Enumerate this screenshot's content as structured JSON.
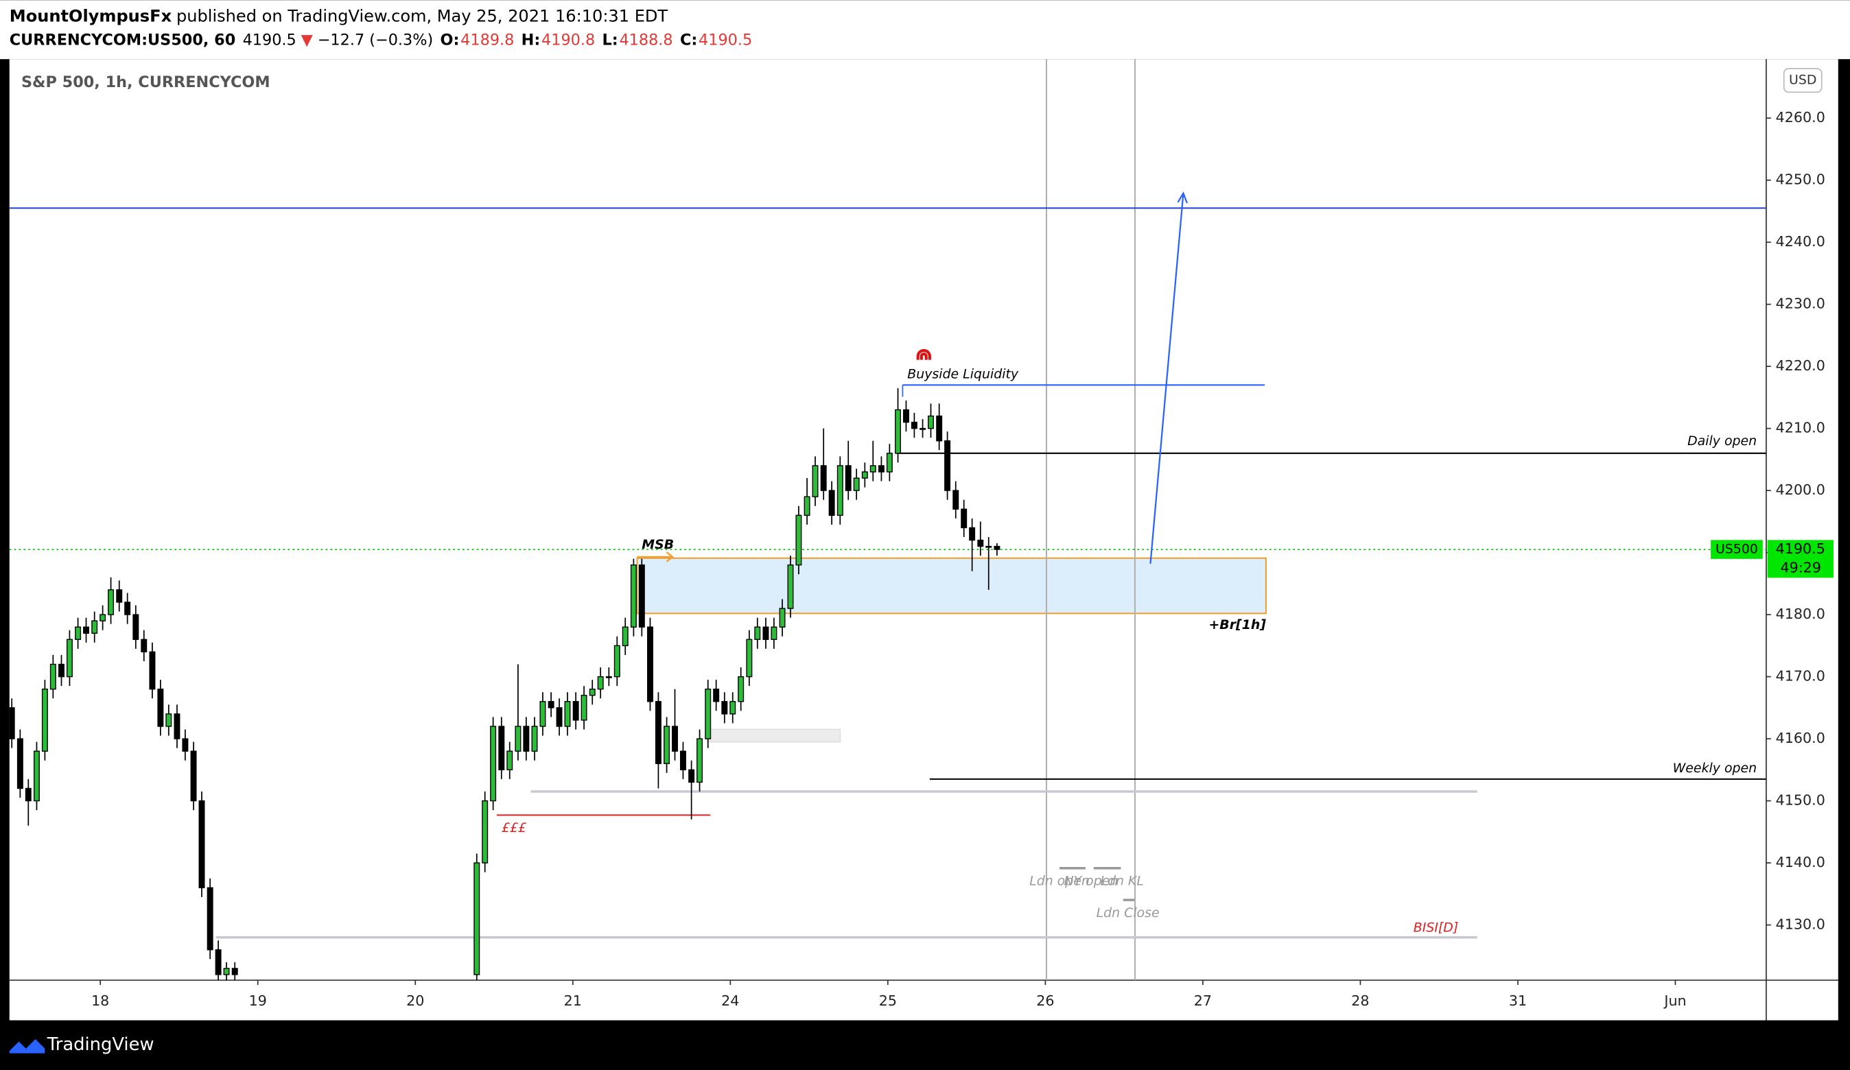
{
  "header": {
    "author": "MountOlympusFx",
    "published": "published on TradingView.com, May 25, 2021 16:10:31 EDT",
    "symbol": "CURRENCYCOM:US500, 60",
    "last": "4190.5",
    "arrow": "▼",
    "change": "−12.7 (−0.3%)",
    "ohlc": [
      {
        "key": "O:",
        "value": "4189.8"
      },
      {
        "key": "H:",
        "value": "4190.8"
      },
      {
        "key": "L:",
        "value": "4188.8"
      },
      {
        "key": "C:",
        "value": "4190.5"
      }
    ]
  },
  "footer": {
    "brand": "TradingView"
  },
  "chart_data": {
    "type": "candlestick",
    "title": "S&P 500, 1h, CURRENCYCOM",
    "currency": "USD",
    "xlim": [
      -0.577,
      10.577
    ],
    "ylim": [
      4121.1,
      4269.5
    ],
    "grid": false,
    "xticks": [
      {
        "value": 0,
        "label": "18"
      },
      {
        "value": 1,
        "label": "19"
      },
      {
        "value": 2,
        "label": "20"
      },
      {
        "value": 3,
        "label": "21"
      },
      {
        "value": 4,
        "label": "24"
      },
      {
        "value": 5,
        "label": "25"
      },
      {
        "value": 6,
        "label": "26"
      },
      {
        "value": 7,
        "label": "27"
      },
      {
        "value": 8,
        "label": "28"
      },
      {
        "value": 9,
        "label": "31"
      },
      {
        "value": 10,
        "label": "Jun"
      }
    ],
    "yticks": [
      {
        "value": 4130,
        "label": "4130.0"
      },
      {
        "value": 4140,
        "label": "4140.0"
      },
      {
        "value": 4150,
        "label": "4150.0"
      },
      {
        "value": 4160,
        "label": "4160.0"
      },
      {
        "value": 4170,
        "label": "4170.0"
      },
      {
        "value": 4180,
        "label": "4180.0"
      },
      {
        "value": 4190,
        "label": "4190.0"
      },
      {
        "value": 4200,
        "label": "4200.0"
      },
      {
        "value": 4210,
        "label": "4210.0"
      },
      {
        "value": 4220,
        "label": "4220.0"
      },
      {
        "value": 4230,
        "label": "4230.0"
      },
      {
        "value": 4240,
        "label": "4240.0"
      },
      {
        "value": 4250,
        "label": "4250.0"
      },
      {
        "value": 4260,
        "label": "4260.0"
      }
    ],
    "up_color": "#2dbb3a",
    "down_color": "#000000",
    "candles": [
      [
        -0.562,
        4165,
        4166.5,
        4158.5,
        4160
      ],
      [
        -0.509,
        4160,
        4161.5,
        4150.5,
        4152
      ],
      [
        -0.457,
        4152,
        4153.5,
        4146,
        4150
      ],
      [
        -0.404,
        4150,
        4159.5,
        4148.5,
        4158
      ],
      [
        -0.352,
        4158,
        4169.5,
        4156.5,
        4168
      ],
      [
        -0.3,
        4168,
        4173.5,
        4166.5,
        4172
      ],
      [
        -0.247,
        4172,
        4173.5,
        4168.5,
        4170
      ],
      [
        -0.195,
        4170,
        4177.5,
        4168.5,
        4176
      ],
      [
        -0.142,
        4176,
        4179.5,
        4174.5,
        4178
      ],
      [
        -0.09,
        4178,
        4179.5,
        4175.5,
        4177
      ],
      [
        -0.037,
        4177,
        4180.5,
        4175.5,
        4179
      ],
      [
        0.015,
        4179,
        4181.5,
        4177.5,
        4180
      ],
      [
        0.067,
        4180,
        4186,
        4178.5,
        4184
      ],
      [
        0.12,
        4184,
        4185.5,
        4180.5,
        4182
      ],
      [
        0.172,
        4182,
        4183.5,
        4178.5,
        4180
      ],
      [
        0.225,
        4180,
        4181.5,
        4174.5,
        4176
      ],
      [
        0.277,
        4176,
        4177.5,
        4172.5,
        4174
      ],
      [
        0.33,
        4174,
        4175.5,
        4166.5,
        4168
      ],
      [
        0.382,
        4168,
        4169.5,
        4160.5,
        4162
      ],
      [
        0.434,
        4162,
        4165.5,
        4160.5,
        4164
      ],
      [
        0.487,
        4164,
        4165.5,
        4158.5,
        4160
      ],
      [
        0.539,
        4160,
        4161.5,
        4156.5,
        4158
      ],
      [
        0.592,
        4158,
        4159.5,
        4148.5,
        4150
      ],
      [
        0.644,
        4150,
        4151.5,
        4134.5,
        4136
      ],
      [
        0.697,
        4136,
        4137.5,
        4124.5,
        4126
      ],
      [
        0.749,
        4126,
        4127.5,
        4120.5,
        4122
      ],
      [
        0.801,
        4122,
        4124,
        4120,
        4123
      ],
      [
        0.854,
        4123,
        4124,
        4120,
        4122
      ],
      [
        2.39,
        4122,
        4141.5,
        4120.5,
        4140
      ],
      [
        2.442,
        4140,
        4151.5,
        4138.5,
        4150
      ],
      [
        2.494,
        4150,
        4163.5,
        4148.5,
        4162
      ],
      [
        2.547,
        4162,
        4163.5,
        4153.5,
        4155
      ],
      [
        2.599,
        4155,
        4159.5,
        4153.5,
        4158
      ],
      [
        2.652,
        4158,
        4172,
        4156.5,
        4162
      ],
      [
        2.704,
        4162,
        4163.5,
        4156.5,
        4158
      ],
      [
        2.757,
        4158,
        4163.5,
        4156.5,
        4162
      ],
      [
        2.809,
        4162,
        4167.5,
        4160.5,
        4166
      ],
      [
        2.862,
        4166,
        4167.5,
        4163.5,
        4165
      ],
      [
        2.914,
        4165,
        4166.5,
        4160.5,
        4162
      ],
      [
        2.966,
        4162,
        4167.5,
        4160.5,
        4166
      ],
      [
        3.019,
        4166,
        4167.5,
        4161.5,
        4163
      ],
      [
        3.071,
        4163,
        4168.5,
        4161.5,
        4167
      ],
      [
        3.124,
        4167,
        4169.5,
        4165.5,
        4168
      ],
      [
        3.176,
        4168,
        4171.5,
        4166.5,
        4170
      ],
      [
        3.229,
        4170,
        4171.5,
        4168.5,
        4170
      ],
      [
        3.281,
        4170,
        4176.5,
        4168.5,
        4175
      ],
      [
        3.333,
        4175,
        4179.5,
        4173.5,
        4178
      ],
      [
        3.386,
        4178,
        4189,
        4176.5,
        4188
      ],
      [
        3.438,
        4188,
        4189,
        4176.5,
        4178
      ],
      [
        3.491,
        4178,
        4179.5,
        4164.5,
        4166
      ],
      [
        3.543,
        4166,
        4167.5,
        4152,
        4156
      ],
      [
        3.596,
        4156,
        4163.5,
        4154.5,
        4162
      ],
      [
        3.648,
        4162,
        4168,
        4156.5,
        4158
      ],
      [
        3.7,
        4158,
        4159.5,
        4153.5,
        4155
      ],
      [
        3.753,
        4155,
        4156.5,
        4147,
        4153
      ],
      [
        3.805,
        4153,
        4161.5,
        4151.5,
        4160
      ],
      [
        3.858,
        4160,
        4169.5,
        4158.5,
        4168
      ],
      [
        3.91,
        4168,
        4169.5,
        4164.5,
        4166
      ],
      [
        3.963,
        4166,
        4167.5,
        4162.5,
        4164
      ],
      [
        4.015,
        4164,
        4167.5,
        4162.5,
        4166
      ],
      [
        4.067,
        4166,
        4171.5,
        4164.5,
        4170
      ],
      [
        4.12,
        4170,
        4177.5,
        4168.5,
        4176
      ],
      [
        4.172,
        4176,
        4179.5,
        4174.5,
        4178
      ],
      [
        4.225,
        4178,
        4179.5,
        4174.5,
        4176
      ],
      [
        4.277,
        4176,
        4179.5,
        4174.5,
        4178
      ],
      [
        4.33,
        4178,
        4182.5,
        4176.5,
        4181
      ],
      [
        4.382,
        4181,
        4189.5,
        4179.5,
        4188
      ],
      [
        4.434,
        4188,
        4197.5,
        4186.5,
        4196
      ],
      [
        4.487,
        4196,
        4202,
        4194.5,
        4199
      ],
      [
        4.539,
        4199,
        4205.5,
        4197.5,
        4204
      ],
      [
        4.592,
        4204,
        4210,
        4198.5,
        4200
      ],
      [
        4.644,
        4200,
        4201.5,
        4194.5,
        4196
      ],
      [
        4.697,
        4196,
        4205.5,
        4194.5,
        4204
      ],
      [
        4.749,
        4204,
        4208,
        4198.5,
        4200
      ],
      [
        4.801,
        4200,
        4203.5,
        4198.5,
        4202
      ],
      [
        4.854,
        4202,
        4204.5,
        4200.5,
        4203
      ],
      [
        4.906,
        4203,
        4208,
        4201.5,
        4204
      ],
      [
        4.959,
        4204,
        4205.5,
        4201.5,
        4203
      ],
      [
        5.011,
        4203,
        4207.5,
        4201.5,
        4206
      ],
      [
        5.064,
        4206,
        4216.5,
        4204.5,
        4213
      ],
      [
        5.116,
        4213,
        4214.5,
        4209.5,
        4211
      ],
      [
        5.168,
        4211,
        4212.5,
        4208.5,
        4210
      ],
      [
        5.221,
        4210,
        4211.5,
        4208.5,
        4210
      ],
      [
        5.273,
        4210,
        4214,
        4208.5,
        4212
      ],
      [
        5.326,
        4212,
        4214,
        4206.5,
        4208
      ],
      [
        5.378,
        4208,
        4209.5,
        4198.5,
        4200
      ],
      [
        5.431,
        4200,
        4201.5,
        4195.5,
        4197
      ],
      [
        5.483,
        4197,
        4198.5,
        4192.5,
        4194
      ],
      [
        5.535,
        4194,
        4195.5,
        4187,
        4192
      ],
      [
        5.588,
        4192,
        4195,
        4189.5,
        4191
      ],
      [
        5.64,
        4191,
        4192.5,
        4184,
        4191
      ],
      [
        5.693,
        4191,
        4191.5,
        4189.5,
        4190.5
      ]
    ],
    "hlines": [
      {
        "value": 4245.5,
        "color": "#1f3fd6",
        "from": -0.577,
        "to": 10.577
      },
      {
        "label": "Buyside Liquidity",
        "value": 4217,
        "color": "#2962ff",
        "from": 5.094,
        "to": 7.393
      },
      {
        "label": "Daily open",
        "value": 4206,
        "color": "#000000",
        "from": 5.056,
        "to": 10.577
      },
      {
        "label": "Weekly open",
        "value": 4153.5,
        "color": "#000000",
        "from": 5.266,
        "to": 10.577
      },
      {
        "label": "£££",
        "value": 4147.7,
        "color": "#e02020",
        "from": 2.517,
        "to": 3.873
      },
      {
        "value": 4151.5,
        "color": "#c8c8d0",
        "from": 2.734,
        "to": 8.742
      },
      {
        "label": "BISI[D]",
        "value": 4128,
        "color": "#c8c8d0",
        "from": 0.734,
        "to": 8.742
      }
    ],
    "boxes": [
      {
        "label": "+Br[1h]",
        "from": 3.408,
        "to": 7.401,
        "top": 4189.1,
        "bottom": 4180.2,
        "fill": "#dcedfc",
        "stroke": "#f0a030"
      },
      {
        "from": 3.858,
        "to": 4.697,
        "top": 4161.5,
        "bottom": 4159.5,
        "fill": "#ececec",
        "stroke": "#e2e2e2"
      }
    ],
    "msb": {
      "label": "MSB",
      "value": 4189.3,
      "from": 3.408,
      "to": 3.633,
      "color": "#f0a030"
    },
    "vlines": [
      6.007,
      6.569
    ],
    "arrow": {
      "from": [
        6.667,
        4188.2
      ],
      "to": [
        6.876,
        4247.9
      ],
      "color": "#2962ff"
    },
    "annotations": [
      {
        "text": "Ldn open",
        "x": 6.09,
        "y": 4137
      },
      {
        "text": "NY open",
        "x": 6.29,
        "y": 4137
      },
      {
        "text": "Ldn KL",
        "x": 6.487,
        "y": 4137
      },
      {
        "text": "Ldn Close",
        "x": 6.524,
        "y": 4131.9
      }
    ],
    "last": {
      "name": "US500",
      "value": 4190.5,
      "countdown": "49:29",
      "color": "#00e600"
    }
  }
}
